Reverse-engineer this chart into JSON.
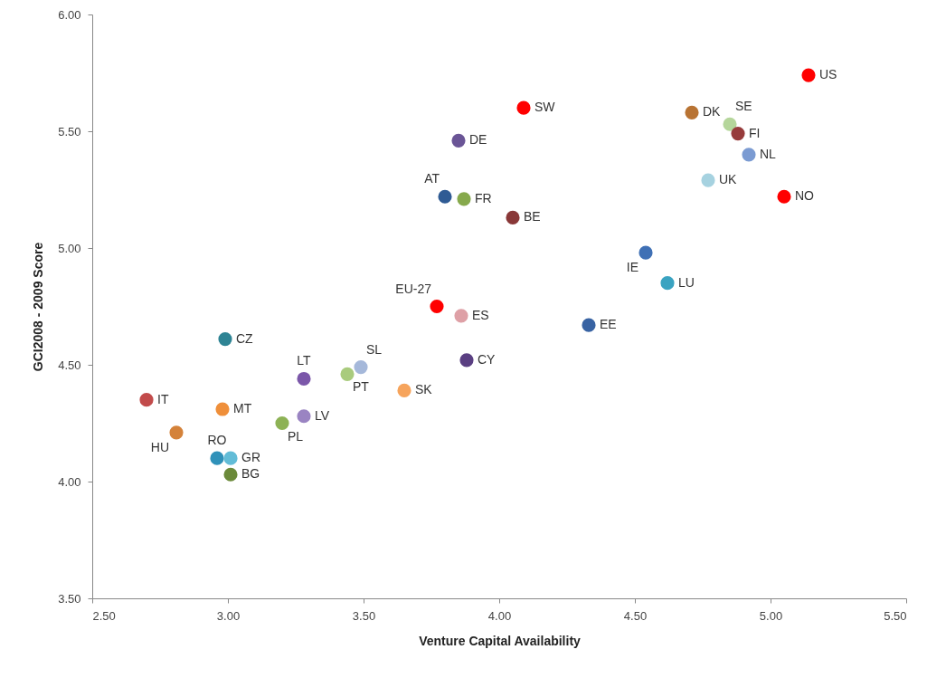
{
  "chart_data": {
    "type": "scatter",
    "xlabel": "Venture Capital  Availability",
    "ylabel": "GCI2008 - 2009 Score",
    "xlim": [
      2.5,
      5.5
    ],
    "ylim": [
      3.5,
      6
    ],
    "xticks": [
      {
        "value": 2.5,
        "label": "2.50"
      },
      {
        "value": 3,
        "label": "3.00"
      },
      {
        "value": 3.5,
        "label": "3.50"
      },
      {
        "value": 4,
        "label": "4.00"
      },
      {
        "value": 4.5,
        "label": "4.50"
      },
      {
        "value": 5,
        "label": "5.00"
      },
      {
        "value": 5.5,
        "label": "5.50"
      }
    ],
    "yticks": [
      {
        "value": 3.5,
        "label": "3.50"
      },
      {
        "value": 4,
        "label": "4.00"
      },
      {
        "value": 4.5,
        "label": "4.50"
      },
      {
        "value": 5,
        "label": "5.00"
      },
      {
        "value": 5.5,
        "label": "5.50"
      },
      {
        "value": 6,
        "label": "6.00"
      }
    ],
    "series": [
      {
        "name": "US",
        "color": "#ff0000",
        "x": [
          5.14
        ],
        "values": [
          5.74
        ]
      },
      {
        "name": "SW",
        "color": "#ff0000",
        "x": [
          4.09
        ],
        "values": [
          5.6
        ]
      },
      {
        "name": "DK",
        "color": "#b87333",
        "x": [
          4.71
        ],
        "values": [
          5.58
        ]
      },
      {
        "name": "SE",
        "color": "#b5d69b",
        "x": [
          4.85
        ],
        "values": [
          5.53
        ]
      },
      {
        "name": "FI",
        "color": "#973b3b",
        "x": [
          4.88
        ],
        "values": [
          5.49
        ]
      },
      {
        "name": "NL",
        "color": "#7b9bd2",
        "x": [
          4.92
        ],
        "values": [
          5.4
        ]
      },
      {
        "name": "UK",
        "color": "#a6d2e0",
        "x": [
          4.77
        ],
        "values": [
          5.29
        ]
      },
      {
        "name": "NO",
        "color": "#ff0000",
        "x": [
          5.05
        ],
        "values": [
          5.22
        ]
      },
      {
        "name": "DE",
        "color": "#6a5596",
        "x": [
          3.85
        ],
        "values": [
          5.46
        ]
      },
      {
        "name": "AT",
        "color": "#2f5b94",
        "x": [
          3.8
        ],
        "values": [
          5.22
        ]
      },
      {
        "name": "FR",
        "color": "#86a94c",
        "x": [
          3.87
        ],
        "values": [
          5.21
        ]
      },
      {
        "name": "BE",
        "color": "#893838",
        "x": [
          4.05
        ],
        "values": [
          5.13
        ]
      },
      {
        "name": "IE",
        "color": "#3f70b5",
        "x": [
          4.54
        ],
        "values": [
          4.98
        ]
      },
      {
        "name": "LU",
        "color": "#3aa3c1",
        "x": [
          4.62
        ],
        "values": [
          4.85
        ]
      },
      {
        "name": "EU-27",
        "color": "#ff0000",
        "x": [
          3.77
        ],
        "values": [
          4.75
        ]
      },
      {
        "name": "ES",
        "color": "#dea0a6",
        "x": [
          3.86
        ],
        "values": [
          4.71
        ]
      },
      {
        "name": "EE",
        "color": "#3863a3",
        "x": [
          4.33
        ],
        "values": [
          4.67
        ]
      },
      {
        "name": "CZ",
        "color": "#2e8494",
        "x": [
          2.99
        ],
        "values": [
          4.61
        ]
      },
      {
        "name": "CY",
        "color": "#5a3f82",
        "x": [
          3.88
        ],
        "values": [
          4.52
        ]
      },
      {
        "name": "LT",
        "color": "#7b57a9",
        "x": [
          3.28
        ],
        "values": [
          4.44
        ]
      },
      {
        "name": "SL",
        "color": "#a5b8da",
        "x": [
          3.49
        ],
        "values": [
          4.49
        ]
      },
      {
        "name": "PT",
        "color": "#a9cb7d",
        "x": [
          3.44
        ],
        "values": [
          4.46
        ]
      },
      {
        "name": "SK",
        "color": "#f6a45c",
        "x": [
          3.65
        ],
        "values": [
          4.39
        ]
      },
      {
        "name": "IT",
        "color": "#c24b4b",
        "x": [
          2.7
        ],
        "values": [
          4.35
        ]
      },
      {
        "name": "MT",
        "color": "#ef8f3a",
        "x": [
          2.98
        ],
        "values": [
          4.31
        ]
      },
      {
        "name": "LV",
        "color": "#9a84c2",
        "x": [
          3.28
        ],
        "values": [
          4.28
        ]
      },
      {
        "name": "PL",
        "color": "#8db255",
        "x": [
          3.2
        ],
        "values": [
          4.25
        ]
      },
      {
        "name": "HU",
        "color": "#d4823a",
        "x": [
          2.81
        ],
        "values": [
          4.21
        ]
      },
      {
        "name": "RO",
        "color": "#2f91b9",
        "x": [
          2.96
        ],
        "values": [
          4.1
        ]
      },
      {
        "name": "GR",
        "color": "#62bcd7",
        "x": [
          3.01
        ],
        "values": [
          4.1
        ]
      },
      {
        "name": "BG",
        "color": "#6b8a3a",
        "x": [
          3.01
        ],
        "values": [
          4.03
        ]
      }
    ]
  }
}
